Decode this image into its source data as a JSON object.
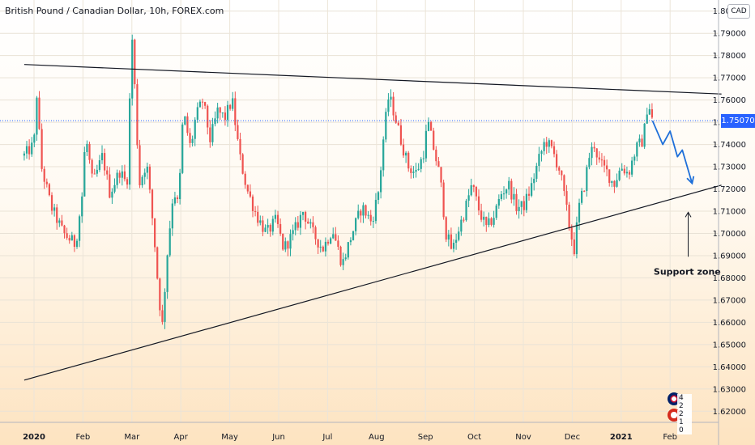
{
  "header": {
    "title": "British Pound / Canadian Dollar, 10h, FOREX.com",
    "currency": "CAD"
  },
  "current_price": "1.75070",
  "flags": [
    {
      "name": "gbp-flag",
      "count": "4 2 2"
    },
    {
      "name": "cad-flag",
      "count": "2 1 0"
    }
  ],
  "colors": {
    "up": "#26a69a",
    "down": "#ef5350",
    "trendline": "#131722",
    "forecast": "#1e6fd9",
    "price_line": "#2962ff"
  },
  "chart_data": {
    "type": "candlestick",
    "title": "British Pound / Canadian Dollar, 10h, FOREX.com",
    "ylim": [
      1.615,
      1.805
    ],
    "y_ticks": [
      "1.62000",
      "1.63000",
      "1.64000",
      "1.65000",
      "1.66000",
      "1.67000",
      "1.68000",
      "1.69000",
      "1.70000",
      "1.71000",
      "1.72000",
      "1.73000",
      "1.74000",
      "1.75000",
      "1.76000",
      "1.77000",
      "1.78000",
      "1.79000",
      "1.80000"
    ],
    "x_labels": [
      "2020",
      "Feb",
      "Mar",
      "Apr",
      "May",
      "Jun",
      "Jul",
      "Aug",
      "Sep",
      "Oct",
      "Nov",
      "Dec",
      "2021",
      "Feb"
    ],
    "x_label_month_index": [
      0,
      1,
      2,
      3,
      4,
      5,
      6,
      7,
      8,
      9,
      10,
      11,
      12,
      13
    ],
    "last_price": 1.7507,
    "price_path": [
      [
        -0.2,
        1.735
      ],
      [
        0.0,
        1.74
      ],
      [
        0.05,
        1.765
      ],
      [
        0.15,
        1.73
      ],
      [
        0.35,
        1.712
      ],
      [
        0.6,
        1.7
      ],
      [
        0.85,
        1.695
      ],
      [
        1.0,
        1.72
      ],
      [
        1.05,
        1.745
      ],
      [
        1.2,
        1.722
      ],
      [
        1.4,
        1.735
      ],
      [
        1.55,
        1.718
      ],
      [
        1.75,
        1.728
      ],
      [
        1.9,
        1.722
      ],
      [
        2.0,
        1.79
      ],
      [
        2.05,
        1.77
      ],
      [
        2.15,
        1.722
      ],
      [
        2.3,
        1.732
      ],
      [
        2.45,
        1.7
      ],
      [
        2.55,
        1.672
      ],
      [
        2.62,
        1.658
      ],
      [
        2.72,
        1.69
      ],
      [
        2.85,
        1.72
      ],
      [
        2.95,
        1.712
      ],
      [
        3.05,
        1.755
      ],
      [
        3.2,
        1.738
      ],
      [
        3.3,
        1.752
      ],
      [
        3.45,
        1.76
      ],
      [
        3.6,
        1.742
      ],
      [
        3.75,
        1.755
      ],
      [
        3.9,
        1.752
      ],
      [
        4.05,
        1.76
      ],
      [
        4.2,
        1.735
      ],
      [
        4.35,
        1.72
      ],
      [
        4.55,
        1.708
      ],
      [
        4.75,
        1.7
      ],
      [
        4.95,
        1.706
      ],
      [
        5.1,
        1.693
      ],
      [
        5.3,
        1.7
      ],
      [
        5.5,
        1.71
      ],
      [
        5.7,
        1.7
      ],
      [
        5.9,
        1.693
      ],
      [
        6.1,
        1.702
      ],
      [
        6.3,
        1.686
      ],
      [
        6.5,
        1.7
      ],
      [
        6.7,
        1.712
      ],
      [
        6.9,
        1.705
      ],
      [
        7.05,
        1.72
      ],
      [
        7.15,
        1.745
      ],
      [
        7.25,
        1.762
      ],
      [
        7.35,
        1.755
      ],
      [
        7.5,
        1.742
      ],
      [
        7.65,
        1.73
      ],
      [
        7.8,
        1.727
      ],
      [
        7.95,
        1.735
      ],
      [
        8.05,
        1.75
      ],
      [
        8.15,
        1.74
      ],
      [
        8.3,
        1.725
      ],
      [
        8.42,
        1.7
      ],
      [
        8.55,
        1.692
      ],
      [
        8.65,
        1.7
      ],
      [
        8.8,
        1.71
      ],
      [
        8.95,
        1.722
      ],
      [
        9.1,
        1.71
      ],
      [
        9.25,
        1.702
      ],
      [
        9.4,
        1.708
      ],
      [
        9.55,
        1.718
      ],
      [
        9.7,
        1.722
      ],
      [
        9.85,
        1.712
      ],
      [
        10.0,
        1.712
      ],
      [
        10.15,
        1.72
      ],
      [
        10.3,
        1.732
      ],
      [
        10.45,
        1.742
      ],
      [
        10.6,
        1.737
      ],
      [
        10.75,
        1.728
      ],
      [
        10.85,
        1.715
      ],
      [
        10.95,
        1.702
      ],
      [
        11.05,
        1.692
      ],
      [
        11.12,
        1.71
      ],
      [
        11.25,
        1.722
      ],
      [
        11.35,
        1.735
      ],
      [
        11.45,
        1.74
      ],
      [
        11.55,
        1.732
      ],
      [
        11.7,
        1.728
      ],
      [
        11.85,
        1.722
      ],
      [
        12.0,
        1.73
      ],
      [
        12.15,
        1.727
      ],
      [
        12.3,
        1.738
      ],
      [
        12.45,
        1.742
      ],
      [
        12.55,
        1.76
      ],
      [
        12.64,
        1.7507
      ]
    ],
    "trendlines": [
      {
        "name": "resistance-line",
        "from": [
          -0.2,
          1.776
        ],
        "to": [
          14.05,
          1.7627
        ]
      },
      {
        "name": "support-line",
        "from": [
          -0.2,
          1.634
        ],
        "to": [
          14.05,
          1.7217
        ]
      }
    ],
    "forecast_path": [
      [
        12.64,
        1.7507
      ],
      [
        12.85,
        1.74
      ],
      [
        13.0,
        1.746
      ],
      [
        13.15,
        1.7345
      ],
      [
        13.25,
        1.7375
      ],
      [
        13.45,
        1.7225
      ]
    ],
    "annotations": [
      {
        "name": "support-zone-label",
        "text": "Support zone",
        "x": 13.35,
        "y": 1.6815,
        "arrow_from": [
          13.37,
          1.6895
        ],
        "arrow_to": [
          13.37,
          1.7095
        ]
      }
    ]
  }
}
